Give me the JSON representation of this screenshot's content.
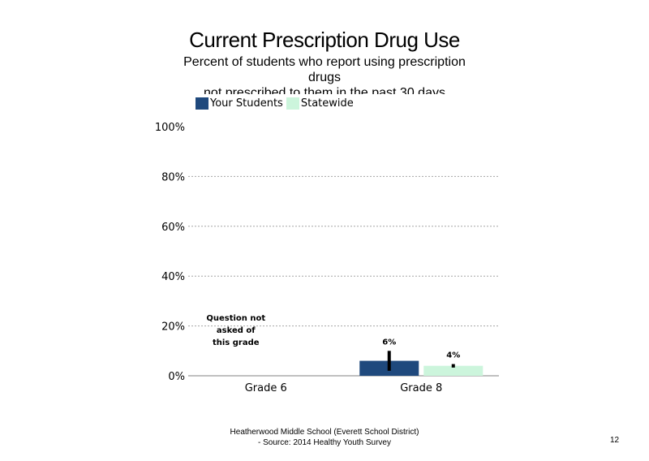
{
  "title": "Current Prescription Drug Use",
  "subtitle_lines": [
    "Percent of students  who report using prescription",
    "drugs",
    "not prescribed to them in the past 30 days"
  ],
  "legend": [
    {
      "label": "Your Students",
      "color": "#1f497d"
    },
    {
      "label": "Statewide",
      "color": "#ccf5dc"
    }
  ],
  "footer_lines": [
    "Heatherwood Middle School (Everett School District)",
    "- Source: 2014 Healthy  Youth Survey"
  ],
  "page_number": "12",
  "chart_data": {
    "type": "bar",
    "categories": [
      "Grade 6",
      "Grade 8"
    ],
    "series": [
      {
        "name": "Your Students",
        "values": [
          null,
          6
        ],
        "labels": [
          "",
          "6%"
        ],
        "error": [
          null,
          [
            2,
            10
          ]
        ]
      },
      {
        "name": "Statewide",
        "values": [
          null,
          4
        ],
        "labels": [
          "",
          "4%"
        ],
        "error": [
          null,
          [
            3.3,
            4.7
          ]
        ]
      }
    ],
    "ylim": [
      0,
      100
    ],
    "yticks": [
      "0%",
      "20%",
      "40%",
      "60%",
      "80%",
      "100%"
    ],
    "grid": true,
    "annotation": {
      "category": "Grade 6",
      "lines": [
        "Question not",
        "asked of",
        "this grade"
      ]
    }
  }
}
